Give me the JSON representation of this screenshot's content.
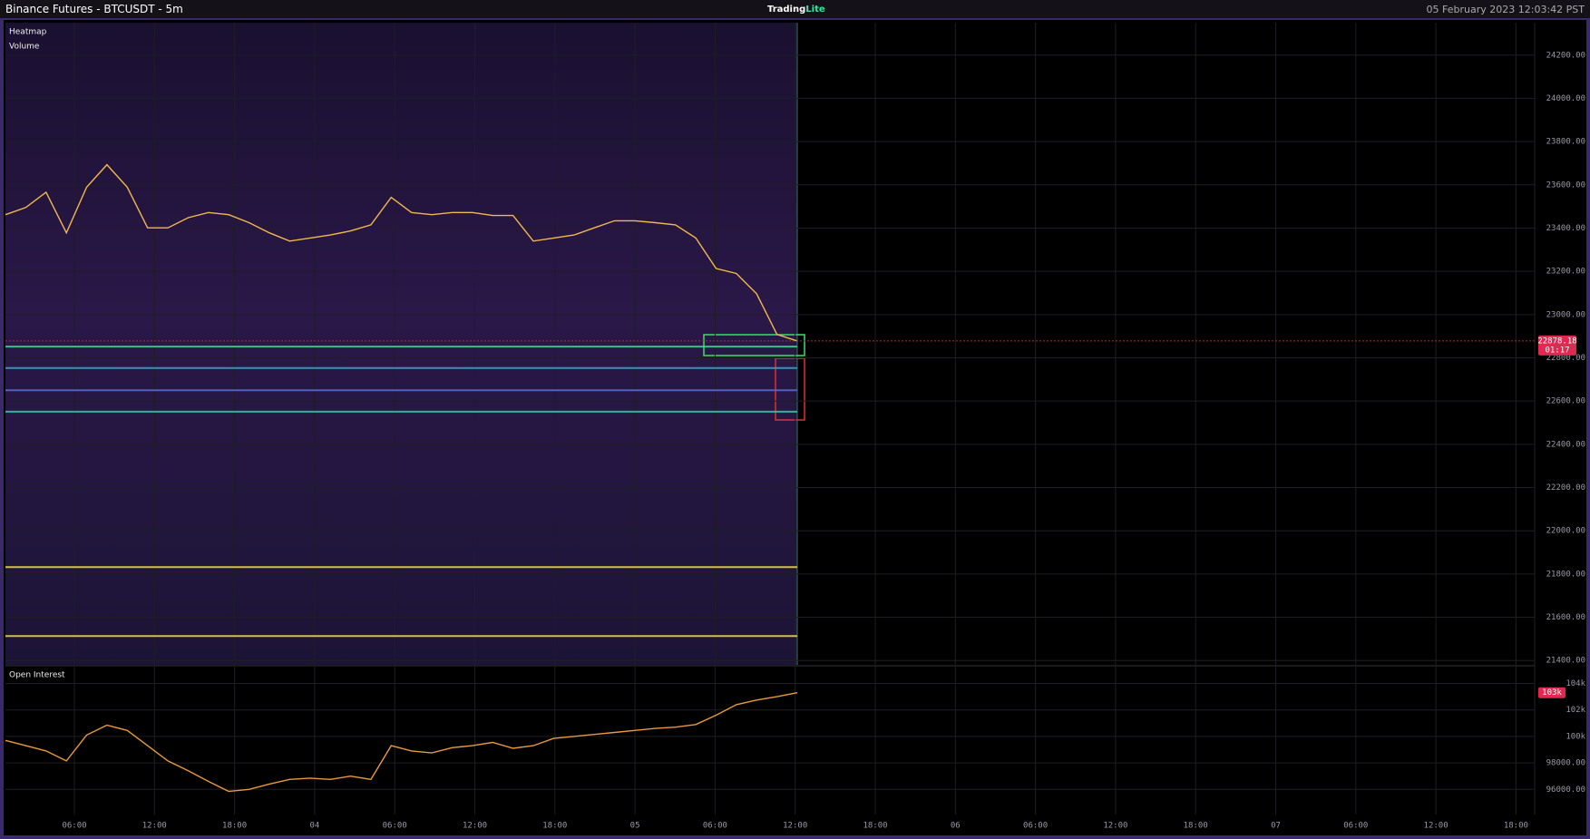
{
  "header": {
    "title": "Binance Futures - BTCUSDT - 5m",
    "logo": [
      "Trading",
      "Lite"
    ],
    "datetime": "05 February 2023 12:03:42 PST"
  },
  "chart_data": [
    {
      "type": "line",
      "indicators": [
        "Heatmap",
        "Volume"
      ],
      "color": "#f2b84b",
      "values": [
        23462,
        23495,
        23566,
        23378,
        23589,
        23693,
        23589,
        23401,
        23401,
        23448,
        23472,
        23462,
        23425,
        23378,
        23340,
        23354,
        23368,
        23387,
        23415,
        23542,
        23472,
        23462,
        23472,
        23472,
        23458,
        23458,
        23340,
        23354,
        23368,
        23401,
        23434,
        23434,
        23425,
        23415,
        23354,
        23213,
        23190,
        23096,
        22908,
        22878
      ],
      "ylim": [
        21380,
        24350
      ],
      "yticks": [
        {
          "value": 24200,
          "label": "24200.00"
        },
        {
          "value": 24000,
          "label": "24000.00"
        },
        {
          "value": 23800,
          "label": "23800.00"
        },
        {
          "value": 23600,
          "label": "23600.00"
        },
        {
          "value": 23400,
          "label": "23400.00"
        },
        {
          "value": 23200,
          "label": "23200.00"
        },
        {
          "value": 23000,
          "label": "23000.00"
        },
        {
          "value": 22800,
          "label": "22800.00"
        },
        {
          "value": 22600,
          "label": "22600.00"
        },
        {
          "value": 22400,
          "label": "22400.00"
        },
        {
          "value": 22200,
          "label": "22200.00"
        },
        {
          "value": 22000,
          "label": "22000.00"
        },
        {
          "value": 21800,
          "label": "21800.00"
        },
        {
          "value": 21600,
          "label": "21600.00"
        },
        {
          "value": 21400,
          "label": "21400.00"
        }
      ],
      "xticks": [
        "06:00",
        "12:00",
        "18:00",
        "04",
        "06:00",
        "12:00",
        "18:00",
        "05",
        "06:00",
        "12:00",
        "18:00",
        "06",
        "06:00",
        "12:00",
        "18:00",
        "07",
        "06:00",
        "12:00",
        "18:00"
      ],
      "levels": [
        {
          "value": 22852,
          "color": "#3ddc97"
        },
        {
          "value": 22753,
          "color": "#3aa6c9"
        },
        {
          "value": 22650,
          "color": "#5a6fd0"
        },
        {
          "value": 22551,
          "color": "#3ac9a8"
        },
        {
          "value": 21832,
          "color": "#f0e040"
        },
        {
          "value": 21513,
          "color": "#f0e040"
        }
      ],
      "last_price": 22878.18,
      "countdown": "01:17",
      "grid": true
    },
    {
      "type": "line",
      "title": "Open Interest",
      "color": "#e89a3c",
      "values": [
        99700,
        99300,
        98900,
        98150,
        100100,
        100850,
        100450,
        99300,
        98150,
        97400,
        96600,
        95850,
        96000,
        96400,
        96750,
        96850,
        96750,
        97000,
        96750,
        99300,
        98900,
        98750,
        99150,
        99300,
        99550,
        99100,
        99300,
        99850,
        100000,
        100150,
        100300,
        100450,
        100600,
        100700,
        100900,
        101600,
        102400,
        102750,
        103000,
        103300
      ],
      "ylim": [
        94100,
        105200
      ],
      "yticks": [
        {
          "value": 104000,
          "label": "104k"
        },
        {
          "value": 102000,
          "label": "102k"
        },
        {
          "value": 100000,
          "label": "100k"
        },
        {
          "value": 98000,
          "label": "98000.00"
        },
        {
          "value": 96000,
          "label": "96000.00"
        }
      ],
      "last": {
        "value": 103300,
        "label": "103k"
      },
      "grid": true
    }
  ]
}
